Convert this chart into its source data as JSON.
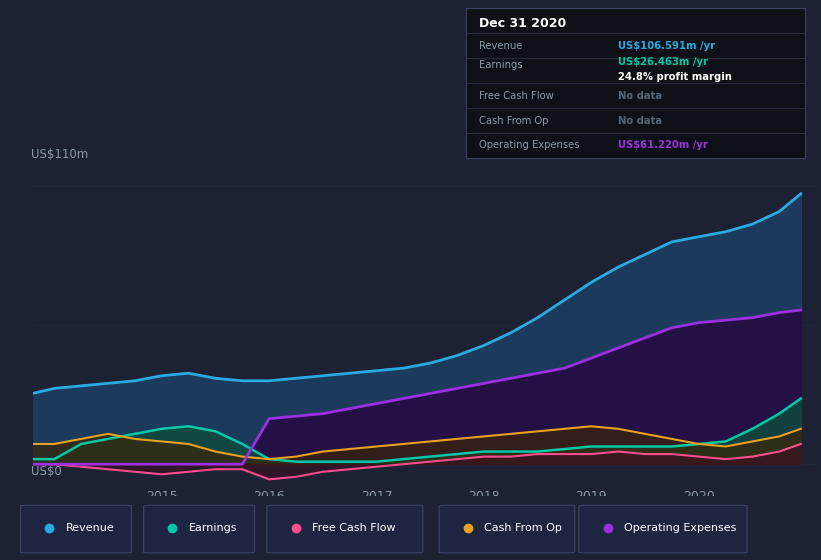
{
  "bg_color": "#1c2133",
  "chart_bg": "#1c2133",
  "ylabel_top": "US$110m",
  "ylabel_bottom": "US$0",
  "x_years": [
    2013.8,
    2014.0,
    2014.25,
    2014.5,
    2014.75,
    2015.0,
    2015.25,
    2015.5,
    2015.75,
    2016.0,
    2016.25,
    2016.5,
    2016.75,
    2017.0,
    2017.25,
    2017.5,
    2017.75,
    2018.0,
    2018.25,
    2018.5,
    2018.75,
    2019.0,
    2019.25,
    2019.5,
    2019.75,
    2020.0,
    2020.25,
    2020.5,
    2020.75,
    2020.95
  ],
  "revenue": [
    28,
    30,
    31,
    32,
    33,
    35,
    36,
    34,
    33,
    33,
    34,
    35,
    36,
    37,
    38,
    40,
    43,
    47,
    52,
    58,
    65,
    72,
    78,
    83,
    88,
    90,
    92,
    95,
    100,
    107
  ],
  "earnings": [
    2,
    2,
    8,
    10,
    12,
    14,
    15,
    13,
    8,
    2,
    1,
    1,
    1,
    1,
    2,
    3,
    4,
    5,
    5,
    5,
    6,
    7,
    7,
    7,
    7,
    8,
    9,
    14,
    20,
    26
  ],
  "free_cash_flow": [
    0,
    0,
    -1,
    -2,
    -3,
    -4,
    -3,
    -2,
    -2,
    -6,
    -5,
    -3,
    -2,
    -1,
    0,
    1,
    2,
    3,
    3,
    4,
    4,
    4,
    5,
    4,
    4,
    3,
    2,
    3,
    5,
    8
  ],
  "cash_from_op": [
    8,
    8,
    10,
    12,
    10,
    9,
    8,
    5,
    3,
    2,
    3,
    5,
    6,
    7,
    8,
    9,
    10,
    11,
    12,
    13,
    14,
    15,
    14,
    12,
    10,
    8,
    7,
    9,
    11,
    14
  ],
  "op_expenses": [
    0,
    0,
    0,
    0,
    0,
    0,
    0,
    0,
    0,
    18,
    19,
    20,
    22,
    24,
    26,
    28,
    30,
    32,
    34,
    36,
    38,
    42,
    46,
    50,
    54,
    56,
    57,
    58,
    60,
    61
  ],
  "revenue_color": "#29abe2",
  "revenue_fill": "#1b3a5c",
  "earnings_color": "#00c9a7",
  "earnings_fill": "#0d4a3e",
  "free_cf_color": "#ff4d8d",
  "free_cf_fill": "#3d0d22",
  "cash_op_color": "#e8a020",
  "cash_op_fill": "#3a2508",
  "op_exp_color": "#9b30e0",
  "op_exp_fill": "#251045",
  "grid_color": "#2a3050",
  "text_color": "#8899aa",
  "info_box_bg": "#0d1117",
  "info_box_border": "#3a4060",
  "info_revenue_color": "#29abe2",
  "info_earnings_color": "#00c9a7",
  "info_nodata_color": "#556677",
  "info_op_exp_color": "#9b30e0",
  "legend_bg": "#1e2540",
  "legend_border": "#3a4565"
}
